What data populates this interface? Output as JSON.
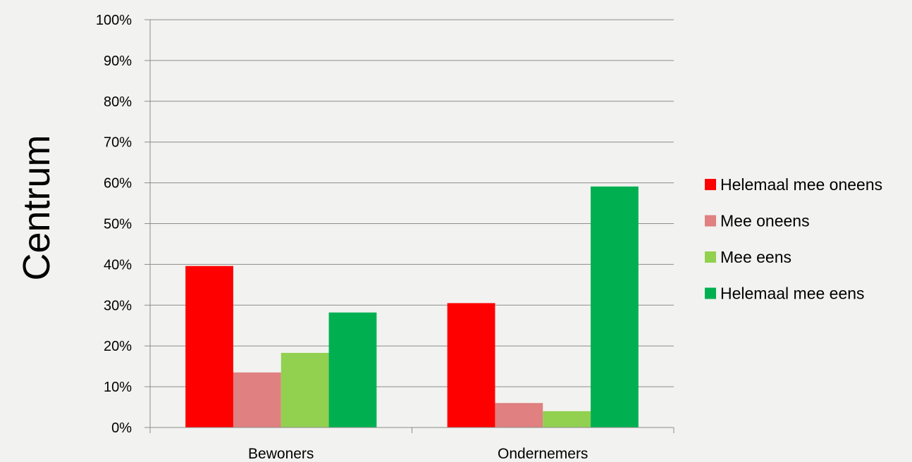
{
  "chart_data": {
    "type": "bar",
    "ylabel": "Centrum",
    "xlabel": "",
    "categories": [
      "Bewoners",
      "Ondernemers"
    ],
    "series": [
      {
        "name": "Helemaal mee oneens",
        "color": "#ff0000",
        "values": [
          39.6,
          30.5
        ]
      },
      {
        "name": "Mee oneens",
        "color": "#e08080",
        "values": [
          13.5,
          6.0
        ]
      },
      {
        "name": "Mee eens",
        "color": "#92d050",
        "values": [
          18.3,
          4.0
        ]
      },
      {
        "name": "Helemaal mee eens",
        "color": "#00b050",
        "values": [
          28.2,
          59.1
        ]
      }
    ],
    "ylim": [
      0,
      100
    ],
    "yticks": [
      "0%",
      "10%",
      "20%",
      "30%",
      "40%",
      "50%",
      "60%",
      "70%",
      "80%",
      "90%",
      "100%"
    ],
    "grid": true,
    "legend_position": "right"
  }
}
